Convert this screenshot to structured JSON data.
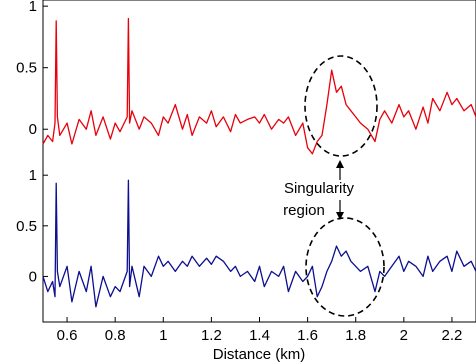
{
  "chart_data": {
    "type": "line",
    "xlabel": "Distance (km)",
    "x_ticks": [
      0.6,
      0.8,
      1,
      1.2,
      1.4,
      1.6,
      1.8,
      2,
      2.2
    ],
    "x_tick_labels": [
      "0.6",
      "0.8",
      "1",
      "1.2",
      "1.4",
      "1.6",
      "1.8",
      "2",
      "2.2"
    ],
    "xlim": [
      0.5,
      2.3
    ],
    "panels": [
      {
        "color": "#e8000b",
        "y_ticks": [
          0,
          0.5,
          1
        ],
        "y_tick_labels": [
          "0",
          "0.5",
          "1"
        ],
        "ylim": [
          -0.25,
          1.05
        ],
        "x": [
          0.5,
          0.52,
          0.54,
          0.55,
          0.555,
          0.56,
          0.57,
          0.6,
          0.62,
          0.65,
          0.68,
          0.7,
          0.72,
          0.75,
          0.78,
          0.8,
          0.82,
          0.85,
          0.855,
          0.86,
          0.87,
          0.9,
          0.92,
          0.95,
          0.98,
          1.0,
          1.02,
          1.05,
          1.08,
          1.1,
          1.12,
          1.15,
          1.18,
          1.2,
          1.22,
          1.25,
          1.28,
          1.3,
          1.32,
          1.35,
          1.38,
          1.4,
          1.42,
          1.45,
          1.48,
          1.5,
          1.52,
          1.55,
          1.58,
          1.6,
          1.62,
          1.64,
          1.66,
          1.68,
          1.7,
          1.72,
          1.74,
          1.76,
          1.78,
          1.8,
          1.82,
          1.85,
          1.88,
          1.9,
          1.92,
          1.95,
          1.98,
          2.0,
          2.02,
          2.05,
          2.08,
          2.1,
          2.12,
          2.15,
          2.18,
          2.2,
          2.22,
          2.25,
          2.28,
          2.3
        ],
        "y": [
          -0.12,
          -0.05,
          -0.1,
          0.05,
          0.88,
          0.1,
          -0.05,
          0.05,
          -0.12,
          0.08,
          0.0,
          0.15,
          -0.05,
          0.1,
          -0.08,
          0.05,
          -0.02,
          0.1,
          0.9,
          0.05,
          0.15,
          0.0,
          0.1,
          0.05,
          -0.05,
          0.1,
          0.05,
          0.2,
          0.0,
          0.12,
          -0.05,
          0.1,
          0.05,
          0.15,
          0.02,
          0.1,
          -0.02,
          0.12,
          0.05,
          0.08,
          0.1,
          0.05,
          0.12,
          0.0,
          0.08,
          0.05,
          0.1,
          -0.05,
          0.05,
          -0.15,
          -0.2,
          -0.1,
          -0.05,
          0.2,
          0.48,
          0.3,
          0.35,
          0.2,
          0.15,
          0.1,
          0.05,
          0.0,
          -0.1,
          0.08,
          0.15,
          0.05,
          0.2,
          0.1,
          0.15,
          0.0,
          0.18,
          0.05,
          0.25,
          0.15,
          0.3,
          0.2,
          0.25,
          0.15,
          0.2,
          0.1
        ]
      },
      {
        "color": "#0c0f8f",
        "y_ticks": [
          0,
          0.5,
          1
        ],
        "y_tick_labels": [
          "0",
          "0.5",
          "1"
        ],
        "ylim": [
          -0.45,
          1.15
        ],
        "x": [
          0.5,
          0.52,
          0.54,
          0.55,
          0.555,
          0.56,
          0.57,
          0.6,
          0.62,
          0.65,
          0.68,
          0.7,
          0.72,
          0.75,
          0.78,
          0.8,
          0.82,
          0.85,
          0.855,
          0.86,
          0.87,
          0.9,
          0.92,
          0.95,
          0.98,
          1.0,
          1.02,
          1.05,
          1.08,
          1.1,
          1.12,
          1.15,
          1.18,
          1.2,
          1.22,
          1.25,
          1.28,
          1.3,
          1.32,
          1.35,
          1.38,
          1.4,
          1.42,
          1.45,
          1.48,
          1.5,
          1.52,
          1.55,
          1.58,
          1.6,
          1.62,
          1.64,
          1.66,
          1.68,
          1.7,
          1.72,
          1.74,
          1.76,
          1.78,
          1.8,
          1.82,
          1.85,
          1.88,
          1.9,
          1.92,
          1.95,
          1.98,
          2.0,
          2.02,
          2.05,
          2.08,
          2.1,
          2.12,
          2.15,
          2.18,
          2.2,
          2.22,
          2.25,
          2.28,
          2.3
        ],
        "y": [
          0.0,
          -0.15,
          -0.05,
          -0.2,
          0.92,
          0.05,
          -0.1,
          0.1,
          -0.25,
          0.05,
          -0.15,
          0.1,
          -0.3,
          0.0,
          -0.2,
          -0.1,
          -0.15,
          0.05,
          0.95,
          -0.1,
          0.1,
          -0.2,
          0.1,
          0.0,
          0.2,
          0.1,
          0.15,
          0.05,
          0.15,
          0.1,
          0.2,
          0.1,
          0.18,
          0.12,
          0.2,
          0.15,
          0.05,
          0.1,
          0.0,
          0.05,
          -0.05,
          0.1,
          -0.1,
          0.05,
          0.0,
          0.1,
          -0.15,
          0.05,
          -0.05,
          0.0,
          0.1,
          -0.2,
          -0.1,
          0.05,
          0.15,
          0.3,
          0.2,
          0.25,
          0.15,
          0.1,
          0.05,
          0.1,
          -0.15,
          0.05,
          0.0,
          0.1,
          0.2,
          0.05,
          0.15,
          0.1,
          0.0,
          0.2,
          0.05,
          0.15,
          0.2,
          0.05,
          0.25,
          0.1,
          0.15,
          0.05
        ]
      }
    ],
    "annotations": [
      {
        "text": "Singularity",
        "text2": "region"
      }
    ],
    "grid": false
  }
}
